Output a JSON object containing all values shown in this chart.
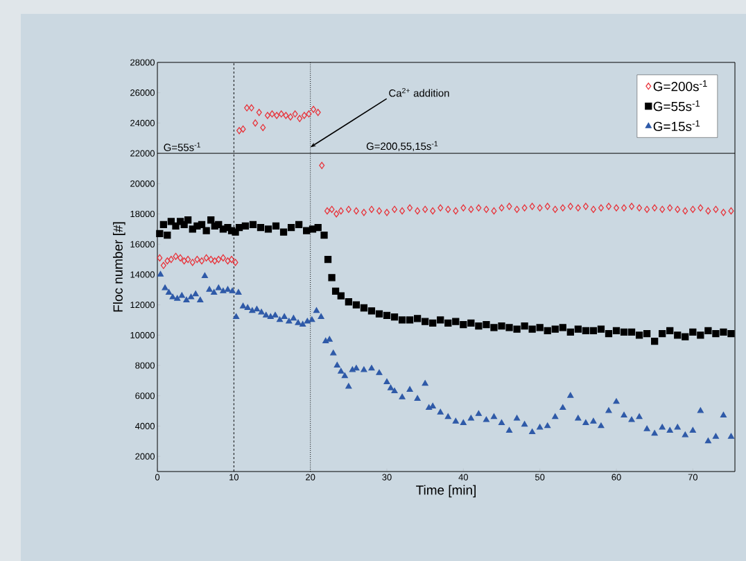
{
  "chart_data": {
    "type": "scatter",
    "xlabel": "Time [min]",
    "ylabel": "Floc number [#]",
    "xlim": [
      0,
      75.5
    ],
    "ylim": [
      1000,
      28000
    ],
    "xticks": [
      0,
      10,
      20,
      30,
      40,
      50,
      60,
      70
    ],
    "yticks": [
      2000,
      4000,
      6000,
      8000,
      10000,
      12000,
      14000,
      16000,
      18000,
      20000,
      22000,
      24000,
      26000,
      28000
    ],
    "legend": "top right",
    "series": [
      {
        "name": "G=200s$^{-1}$",
        "color": "#e8333a",
        "marker": "diamond",
        "x": [
          0.3,
          0.8,
          1.3,
          1.8,
          2.4,
          3,
          3.5,
          4,
          4.6,
          5.2,
          5.8,
          6.4,
          7,
          7.5,
          8,
          8.6,
          9.2,
          9.7,
          10.2,
          10.7,
          11.2,
          11.7,
          12.3,
          12.8,
          13.3,
          13.8,
          14.4,
          15,
          15.6,
          16.2,
          16.8,
          17.4,
          18,
          18.6,
          19.2,
          19.8,
          20.4,
          21,
          21.5,
          22.2,
          22.8,
          23.4,
          24,
          25,
          26,
          27,
          28,
          29,
          30,
          31,
          32,
          33,
          34,
          35,
          36,
          37,
          38,
          39,
          40,
          41,
          42,
          43,
          44,
          45,
          46,
          47,
          48,
          49,
          50,
          51,
          52,
          53,
          54,
          55,
          56,
          57,
          58,
          59,
          60,
          61,
          62,
          63,
          64,
          65,
          66,
          67,
          68,
          69,
          70,
          71,
          72,
          73,
          74,
          75
        ],
        "values": [
          15100,
          14600,
          14900,
          15000,
          15200,
          15100,
          14900,
          15000,
          14800,
          15000,
          14900,
          15100,
          15000,
          14900,
          15000,
          15100,
          14900,
          15000,
          14800,
          23500,
          23600,
          25000,
          25000,
          24000,
          24700,
          23700,
          24500,
          24600,
          24500,
          24600,
          24500,
          24400,
          24600,
          24300,
          24500,
          24600,
          24900,
          24700,
          21200,
          18200,
          18300,
          18000,
          18200,
          18300,
          18200,
          18100,
          18300,
          18200,
          18100,
          18300,
          18200,
          18400,
          18200,
          18300,
          18200,
          18400,
          18300,
          18200,
          18400,
          18300,
          18400,
          18300,
          18200,
          18400,
          18500,
          18300,
          18400,
          18500,
          18400,
          18500,
          18300,
          18400,
          18500,
          18400,
          18500,
          18300,
          18400,
          18500,
          18400,
          18400,
          18500,
          18400,
          18300,
          18400,
          18300,
          18400,
          18300,
          18200,
          18300,
          18400,
          18200,
          18300,
          18100,
          18200
        ]
      },
      {
        "name": "G=55s$^{-1}$",
        "color": "#000000",
        "marker": "square",
        "x": [
          0.3,
          0.8,
          1.3,
          1.8,
          2.4,
          3,
          3.5,
          4,
          4.6,
          5.2,
          5.8,
          6.4,
          7,
          7.5,
          8,
          8.6,
          9.2,
          9.7,
          10.2,
          10.7,
          11.5,
          12.5,
          13.5,
          14.5,
          15.5,
          16.5,
          17.5,
          18.5,
          19.5,
          20.3,
          21,
          21.8,
          22.3,
          22.8,
          23.3,
          24,
          25,
          26,
          27,
          28,
          29,
          30,
          31,
          32,
          33,
          34,
          35,
          36,
          37,
          38,
          39,
          40,
          41,
          42,
          43,
          44,
          45,
          46,
          47,
          48,
          49,
          50,
          51,
          52,
          53,
          54,
          55,
          56,
          57,
          58,
          59,
          60,
          61,
          62,
          63,
          64,
          65,
          66,
          67,
          68,
          69,
          70,
          71,
          72,
          73,
          74,
          75
        ],
        "values": [
          16700,
          17300,
          16600,
          17500,
          17200,
          17500,
          17300,
          17600,
          17000,
          17200,
          17300,
          16900,
          17600,
          17200,
          17300,
          17000,
          17100,
          16900,
          16800,
          17100,
          17200,
          17300,
          17100,
          17000,
          17200,
          16800,
          17100,
          17300,
          16900,
          17000,
          17100,
          16600,
          15000,
          13800,
          12900,
          12600,
          12200,
          12000,
          11800,
          11600,
          11400,
          11300,
          11200,
          11000,
          11000,
          11100,
          10900,
          10800,
          11000,
          10800,
          10900,
          10700,
          10800,
          10600,
          10700,
          10500,
          10600,
          10500,
          10400,
          10600,
          10400,
          10500,
          10300,
          10400,
          10500,
          10200,
          10400,
          10300,
          10300,
          10400,
          10100,
          10300,
          10200,
          10200,
          10000,
          10100,
          9600,
          10100,
          10300,
          10000,
          9900,
          10200,
          10000,
          10300,
          10100,
          10200,
          10100
        ]
      },
      {
        "name": "G=15s$^{-1}$",
        "color": "#2f5aa8",
        "marker": "triangle",
        "x": [
          0.4,
          1,
          1.5,
          2,
          2.6,
          3.2,
          3.8,
          4.4,
          5,
          5.6,
          6.2,
          6.8,
          7.4,
          8,
          8.6,
          9.2,
          9.8,
          10.3,
          10.6,
          11.2,
          11.8,
          12.4,
          13,
          13.6,
          14.2,
          14.8,
          15.4,
          16,
          16.6,
          17.2,
          17.8,
          18.4,
          19,
          19.6,
          20.2,
          20.8,
          21.4,
          22,
          22.5,
          23,
          23.5,
          24,
          24.5,
          25,
          25.5,
          26,
          27,
          28,
          29,
          30,
          30.5,
          31,
          32,
          33,
          34,
          35,
          35.5,
          36,
          37,
          38,
          39,
          40,
          41,
          42,
          43,
          44,
          45,
          46,
          47,
          48,
          49,
          50,
          51,
          52,
          53,
          54,
          55,
          56,
          57,
          58,
          59,
          60,
          61,
          62,
          63,
          64,
          65,
          66,
          67,
          68,
          69,
          70,
          71,
          72,
          73,
          74,
          75
        ],
        "values": [
          14000,
          13100,
          12800,
          12500,
          12400,
          12600,
          12300,
          12500,
          12700,
          12300,
          13900,
          13000,
          12800,
          13100,
          12900,
          13000,
          12900,
          11200,
          12800,
          11900,
          11800,
          11600,
          11700,
          11500,
          11300,
          11200,
          11300,
          11000,
          11200,
          10900,
          11100,
          10800,
          10700,
          10900,
          11000,
          11600,
          11200,
          9600,
          9700,
          8800,
          8000,
          7600,
          7300,
          6600,
          7700,
          7800,
          7700,
          7800,
          7500,
          6900,
          6500,
          6300,
          5900,
          6400,
          5800,
          6800,
          5200,
          5300,
          4900,
          4600,
          4300,
          4200,
          4500,
          4800,
          4400,
          4600,
          4200,
          3700,
          4500,
          4100,
          3600,
          3900,
          4000,
          4600,
          5200,
          6000,
          4500,
          4200,
          4300,
          4000,
          5000,
          5600,
          4700,
          4400,
          4600,
          3800,
          3500,
          3900,
          3700,
          3900,
          3400,
          3700,
          5000,
          3000,
          3300,
          4700,
          3300
        ]
      }
    ],
    "ref_lines": [
      {
        "axis": "x",
        "value": 10,
        "line_style": "dashed"
      },
      {
        "axis": "x",
        "value": 20,
        "line_style": "dotted"
      },
      {
        "axis": "y",
        "value": 22000,
        "line_style": "solid"
      }
    ],
    "annotations": [
      {
        "text": "G=55s$^{-1}$",
        "x": 0.5,
        "y": 22000
      },
      {
        "text": "G=200,55,15s$^{-1}$",
        "x": 27,
        "y": 22000
      },
      {
        "text": "Ca$^{2+}$ addition",
        "x": 20,
        "y": 22400
      }
    ]
  }
}
